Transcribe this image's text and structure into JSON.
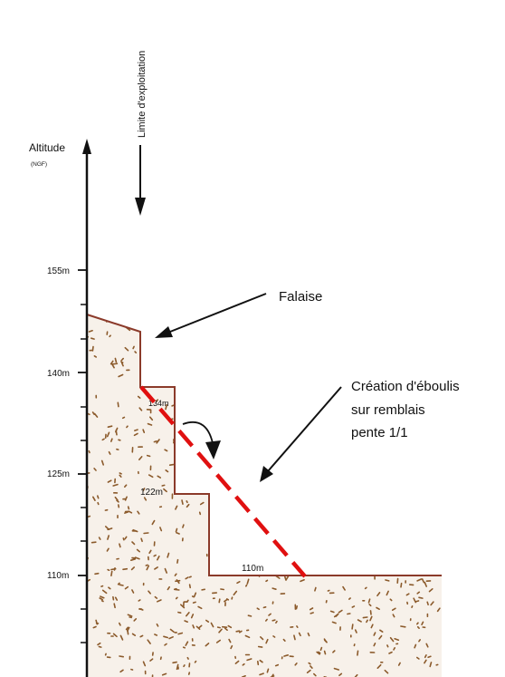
{
  "axis": {
    "label": "Altitude",
    "unit": "(NGF)",
    "ticks": [
      "155m",
      "140m",
      "125m",
      "110m"
    ]
  },
  "annotations": {
    "limit": "Limite d'exploitation",
    "cliff": "Falaise",
    "scree_line1": "Création d'éboulis",
    "scree_line2": "sur remblais",
    "scree_line3": "pente 1/1"
  },
  "levels": [
    "134m",
    "122m",
    "110m"
  ],
  "colors": {
    "profile": "#8b3a2a",
    "scree": "#e01010",
    "fill": "#f7f1ea",
    "speckle": "#8b5a2b",
    "ink": "#111111"
  }
}
